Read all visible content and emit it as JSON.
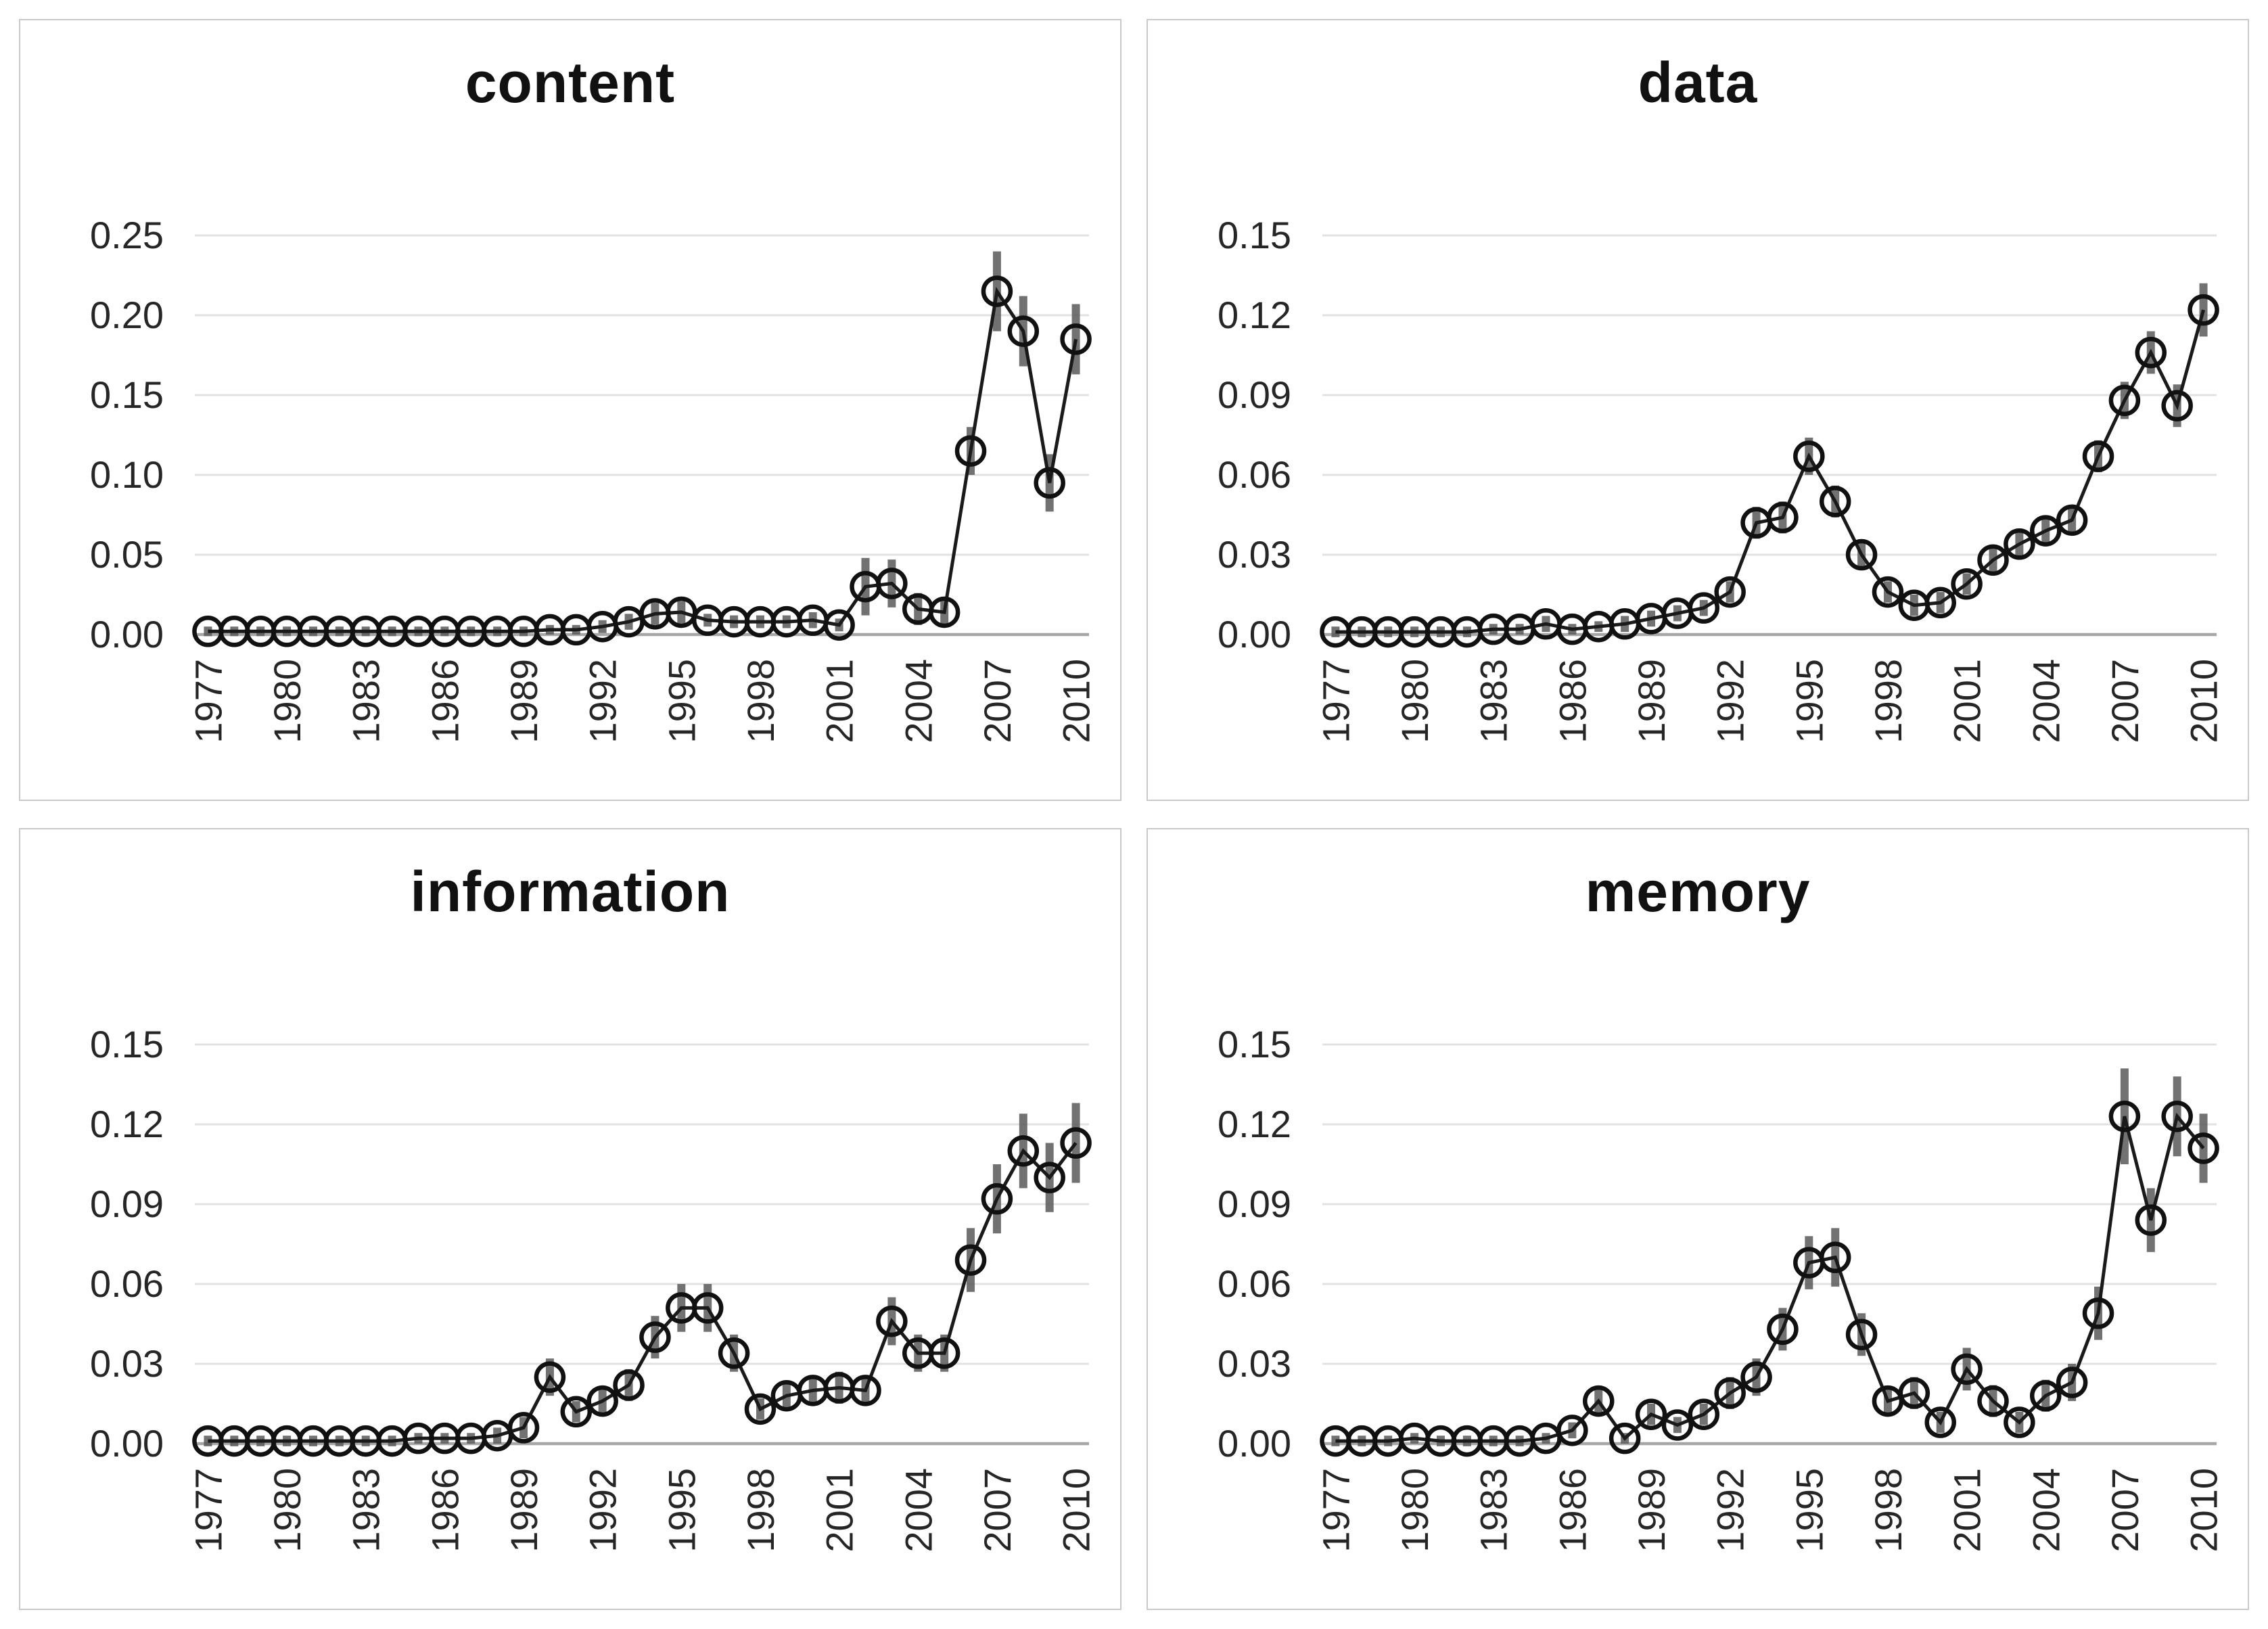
{
  "colors": {
    "line": "#1a1a1a",
    "marker": "#111111",
    "error_bar": "#5a5a5a",
    "gridline": "#e2e2e2",
    "baseline": "#a6a6a6",
    "label": "#262626",
    "title": "#111111",
    "panel_border": "#c9c9c9",
    "background": "#ffffff"
  },
  "chart_data": [
    {
      "type": "line",
      "title": "content",
      "marker": "open-circle",
      "error_bars": true,
      "grid": true,
      "legend": "none",
      "ylim": [
        0,
        0.25
      ],
      "yticks": [
        "0.00",
        "0.05",
        "0.10",
        "0.15",
        "0.20",
        "0.25"
      ],
      "x_tick_labels": [
        "1977",
        "1980",
        "1983",
        "1986",
        "1989",
        "1992",
        "1995",
        "1998",
        "2001",
        "2004",
        "2007",
        "2010"
      ],
      "x": [
        1977,
        1978,
        1979,
        1980,
        1981,
        1982,
        1983,
        1984,
        1985,
        1986,
        1987,
        1988,
        1989,
        1990,
        1991,
        1992,
        1993,
        1994,
        1995,
        1996,
        1997,
        1998,
        1999,
        2000,
        2001,
        2002,
        2003,
        2004,
        2005,
        2006,
        2007,
        2008,
        2009,
        2010
      ],
      "values": [
        0.002,
        0.002,
        0.002,
        0.002,
        0.002,
        0.002,
        0.002,
        0.002,
        0.002,
        0.002,
        0.002,
        0.002,
        0.002,
        0.003,
        0.003,
        0.005,
        0.008,
        0.013,
        0.014,
        0.009,
        0.008,
        0.008,
        0.008,
        0.009,
        0.006,
        0.03,
        0.032,
        0.016,
        0.014,
        0.115,
        0.215,
        0.19,
        0.095,
        0.185
      ],
      "errors": [
        0.003,
        0.003,
        0.003,
        0.003,
        0.003,
        0.003,
        0.003,
        0.003,
        0.003,
        0.003,
        0.003,
        0.003,
        0.003,
        0.003,
        0.003,
        0.004,
        0.005,
        0.007,
        0.007,
        0.004,
        0.004,
        0.004,
        0.004,
        0.005,
        0.004,
        0.018,
        0.015,
        0.01,
        0.008,
        0.015,
        0.025,
        0.022,
        0.018,
        0.022
      ]
    },
    {
      "type": "line",
      "title": "data",
      "marker": "open-circle",
      "error_bars": true,
      "grid": true,
      "legend": "none",
      "ylim": [
        0,
        0.15
      ],
      "yticks": [
        "0.00",
        "0.03",
        "0.06",
        "0.09",
        "0.12",
        "0.15"
      ],
      "x_tick_labels": [
        "1977",
        "1980",
        "1983",
        "1986",
        "1989",
        "1992",
        "1995",
        "1998",
        "2001",
        "2004",
        "2007",
        "2010"
      ],
      "x": [
        1977,
        1978,
        1979,
        1980,
        1981,
        1982,
        1983,
        1984,
        1985,
        1986,
        1987,
        1988,
        1989,
        1990,
        1991,
        1992,
        1993,
        1994,
        1995,
        1996,
        1997,
        1998,
        1999,
        2000,
        2001,
        2002,
        2003,
        2004,
        2005,
        2006,
        2007,
        2008,
        2009,
        2010
      ],
      "values": [
        0.001,
        0.001,
        0.001,
        0.001,
        0.001,
        0.001,
        0.002,
        0.002,
        0.004,
        0.002,
        0.003,
        0.004,
        0.006,
        0.008,
        0.01,
        0.016,
        0.042,
        0.044,
        0.067,
        0.05,
        0.03,
        0.016,
        0.011,
        0.012,
        0.019,
        0.028,
        0.034,
        0.039,
        0.043,
        0.067,
        0.088,
        0.106,
        0.086,
        0.122
      ],
      "errors": [
        0.002,
        0.002,
        0.002,
        0.002,
        0.002,
        0.002,
        0.002,
        0.002,
        0.003,
        0.002,
        0.002,
        0.003,
        0.003,
        0.003,
        0.003,
        0.004,
        0.006,
        0.006,
        0.007,
        0.006,
        0.005,
        0.004,
        0.004,
        0.004,
        0.004,
        0.005,
        0.005,
        0.005,
        0.005,
        0.006,
        0.007,
        0.008,
        0.008,
        0.01
      ]
    },
    {
      "type": "line",
      "title": "information",
      "marker": "open-circle",
      "error_bars": true,
      "grid": true,
      "legend": "none",
      "ylim": [
        0,
        0.15
      ],
      "yticks": [
        "0.00",
        "0.03",
        "0.06",
        "0.09",
        "0.12",
        "0.15"
      ],
      "x_tick_labels": [
        "1977",
        "1980",
        "1983",
        "1986",
        "1989",
        "1992",
        "1995",
        "1998",
        "2001",
        "2004",
        "2007",
        "2010"
      ],
      "x": [
        1977,
        1978,
        1979,
        1980,
        1981,
        1982,
        1983,
        1984,
        1985,
        1986,
        1987,
        1988,
        1989,
        1990,
        1991,
        1992,
        1993,
        1994,
        1995,
        1996,
        1997,
        1998,
        1999,
        2000,
        2001,
        2002,
        2003,
        2004,
        2005,
        2006,
        2007,
        2008,
        2009,
        2010
      ],
      "values": [
        0.001,
        0.001,
        0.001,
        0.001,
        0.001,
        0.001,
        0.001,
        0.001,
        0.002,
        0.002,
        0.002,
        0.003,
        0.006,
        0.025,
        0.012,
        0.016,
        0.022,
        0.04,
        0.051,
        0.051,
        0.034,
        0.013,
        0.018,
        0.02,
        0.021,
        0.02,
        0.046,
        0.034,
        0.034,
        0.069,
        0.092,
        0.11,
        0.1,
        0.113
      ],
      "errors": [
        0.002,
        0.002,
        0.002,
        0.002,
        0.002,
        0.002,
        0.002,
        0.002,
        0.002,
        0.002,
        0.002,
        0.003,
        0.004,
        0.007,
        0.004,
        0.005,
        0.006,
        0.008,
        0.009,
        0.009,
        0.007,
        0.004,
        0.005,
        0.005,
        0.006,
        0.005,
        0.009,
        0.007,
        0.007,
        0.012,
        0.013,
        0.014,
        0.013,
        0.015
      ]
    },
    {
      "type": "line",
      "title": "memory",
      "marker": "open-circle",
      "error_bars": true,
      "grid": true,
      "legend": "none",
      "ylim": [
        0,
        0.15
      ],
      "yticks": [
        "0.00",
        "0.03",
        "0.06",
        "0.09",
        "0.12",
        "0.15"
      ],
      "x_tick_labels": [
        "1977",
        "1980",
        "1983",
        "1986",
        "1989",
        "1992",
        "1995",
        "1998",
        "2001",
        "2004",
        "2007",
        "2010"
      ],
      "x": [
        1977,
        1978,
        1979,
        1980,
        1981,
        1982,
        1983,
        1984,
        1985,
        1986,
        1987,
        1988,
        1989,
        1990,
        1991,
        1992,
        1993,
        1994,
        1995,
        1996,
        1997,
        1998,
        1999,
        2000,
        2001,
        2002,
        2003,
        2004,
        2005,
        2006,
        2007,
        2008,
        2009,
        2010
      ],
      "values": [
        0.001,
        0.001,
        0.001,
        0.002,
        0.001,
        0.001,
        0.001,
        0.001,
        0.002,
        0.005,
        0.016,
        0.002,
        0.011,
        0.007,
        0.011,
        0.019,
        0.025,
        0.043,
        0.068,
        0.07,
        0.041,
        0.016,
        0.019,
        0.008,
        0.028,
        0.016,
        0.008,
        0.018,
        0.023,
        0.049,
        0.123,
        0.084,
        0.123,
        0.111
      ],
      "errors": [
        0.002,
        0.002,
        0.002,
        0.002,
        0.002,
        0.002,
        0.002,
        0.002,
        0.002,
        0.003,
        0.005,
        0.002,
        0.004,
        0.003,
        0.004,
        0.006,
        0.007,
        0.008,
        0.01,
        0.011,
        0.008,
        0.005,
        0.006,
        0.004,
        0.008,
        0.006,
        0.004,
        0.006,
        0.007,
        0.01,
        0.018,
        0.012,
        0.015,
        0.013
      ]
    }
  ]
}
